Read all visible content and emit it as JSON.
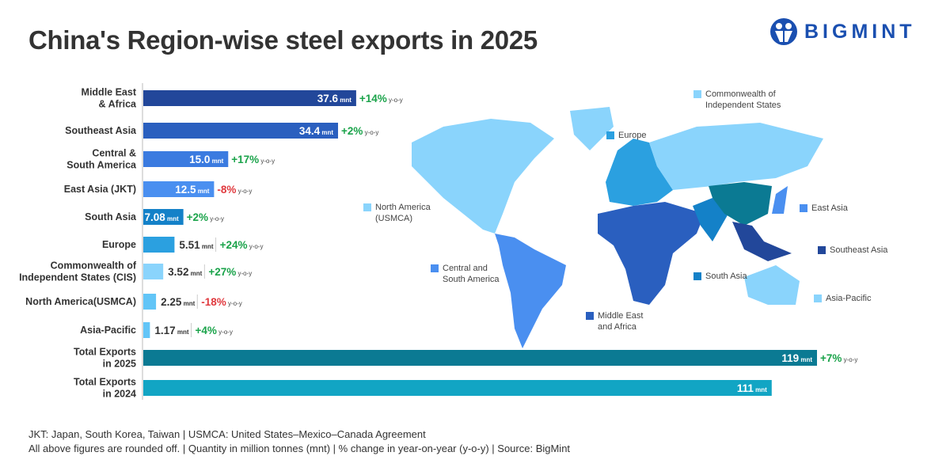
{
  "title": "China's Region-wise steel exports in 2025",
  "logo": "BIGMINT",
  "chart_data": {
    "type": "bar",
    "orientation": "horizontal",
    "unit": "mnt",
    "yoy_suffix": "y-o-y",
    "categories": [
      "Middle East\n& Africa",
      "Southeast Asia",
      "Central &\nSouth America",
      "East Asia (JKT)",
      "South Asia",
      "Europe",
      "Commonwealth of\nIndependent States (CIS)",
      "North America(USMCA)",
      "Asia-Pacific",
      "Total Exports\nin 2025",
      "Total Exports\nin 2024"
    ],
    "values": [
      37.6,
      34.4,
      15.0,
      12.5,
      7.08,
      5.51,
      3.52,
      2.25,
      1.17,
      119,
      111
    ],
    "labels": [
      "37.6",
      "34.4",
      "15.0",
      "12.5",
      "7.08",
      "5.51",
      "3.52",
      "2.25",
      "1.17",
      "119",
      "111"
    ],
    "yoy": [
      "+14%",
      "+2%",
      "+17%",
      "-8%",
      "+2%",
      "+24%",
      "+27%",
      "-18%",
      "+4%",
      "+7%",
      ""
    ],
    "colors": [
      "#22479a",
      "#2a5fbf",
      "#3b7be0",
      "#4a8ff0",
      "#1481c8",
      "#2ba0e0",
      "#8ad4fc",
      "#62c5f7",
      "#62c5f7",
      "#0b7a93",
      "#12a5c4"
    ],
    "positive_color": "#1aa34a",
    "negative_color": "#e0393e",
    "xlim": [
      0,
      125
    ]
  },
  "map_legend": [
    {
      "label": "Commonwealth of\nIndependent States",
      "color": "#8ad4fc"
    },
    {
      "label": "Europe",
      "color": "#2ba0e0"
    },
    {
      "label": "North America\n(USMCA)",
      "color": "#8ad4fc"
    },
    {
      "label": "East Asia",
      "color": "#4a8ff0"
    },
    {
      "label": "Southeast Asia",
      "color": "#22479a"
    },
    {
      "label": "Central and\nSouth America",
      "color": "#4a8ff0"
    },
    {
      "label": "South Asia",
      "color": "#1481c8"
    },
    {
      "label": "Asia-Pacific",
      "color": "#8ad4fc"
    },
    {
      "label": "Middle East\nand Africa",
      "color": "#2a5fbf"
    }
  ],
  "footnotes": [
    "JKT: Japan, South Korea, Taiwan | USMCA: United States–Mexico–Canada Agreement",
    "All above figures are rounded off. | Quantity in million tonnes (mnt) | % change in year-on-year (y-o-y) | Source: BigMint"
  ]
}
